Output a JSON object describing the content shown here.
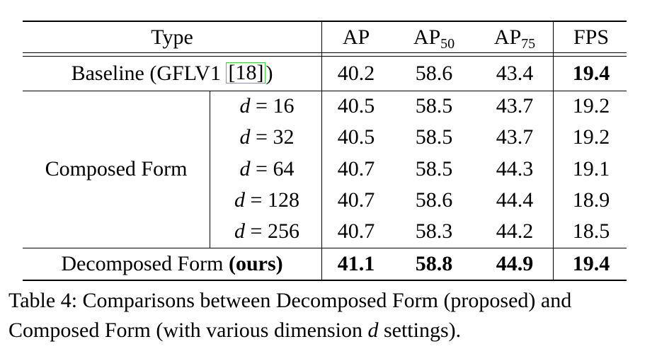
{
  "table": {
    "header": {
      "type": "Type",
      "ap": "AP",
      "ap50_base": "AP",
      "ap50_sub": "50",
      "ap75_base": "AP",
      "ap75_sub": "75",
      "fps": "FPS"
    },
    "baseline": {
      "label_pre": "Baseline (GFLV1 ",
      "cite": "[18]",
      "label_post": ")",
      "ap": "40.2",
      "ap50": "58.6",
      "ap75": "43.4",
      "fps": "19.4"
    },
    "composed": {
      "group_label": "Composed Form",
      "d_var": "d",
      "eq": " = ",
      "rows": [
        {
          "d": "16",
          "ap": "40.5",
          "ap50": "58.5",
          "ap75": "43.7",
          "fps": "19.2"
        },
        {
          "d": "32",
          "ap": "40.5",
          "ap50": "58.5",
          "ap75": "43.7",
          "fps": "19.2"
        },
        {
          "d": "64",
          "ap": "40.7",
          "ap50": "58.5",
          "ap75": "44.3",
          "fps": "19.1"
        },
        {
          "d": "128",
          "ap": "40.7",
          "ap50": "58.6",
          "ap75": "44.4",
          "fps": "18.9"
        },
        {
          "d": "256",
          "ap": "40.7",
          "ap50": "58.3",
          "ap75": "44.2",
          "fps": "18.5"
        }
      ]
    },
    "decomposed": {
      "label": "Decomposed Form ",
      "label_bold": "(ours)",
      "ap": "41.1",
      "ap50": "58.8",
      "ap75": "44.9",
      "fps": "19.4"
    }
  },
  "caption": {
    "line1": "Table 4: Comparisons between Decomposed Form (proposed) and",
    "line2_pre": "Composed Form (with various dimension ",
    "line2_var": "d",
    "line2_post": " settings)."
  }
}
